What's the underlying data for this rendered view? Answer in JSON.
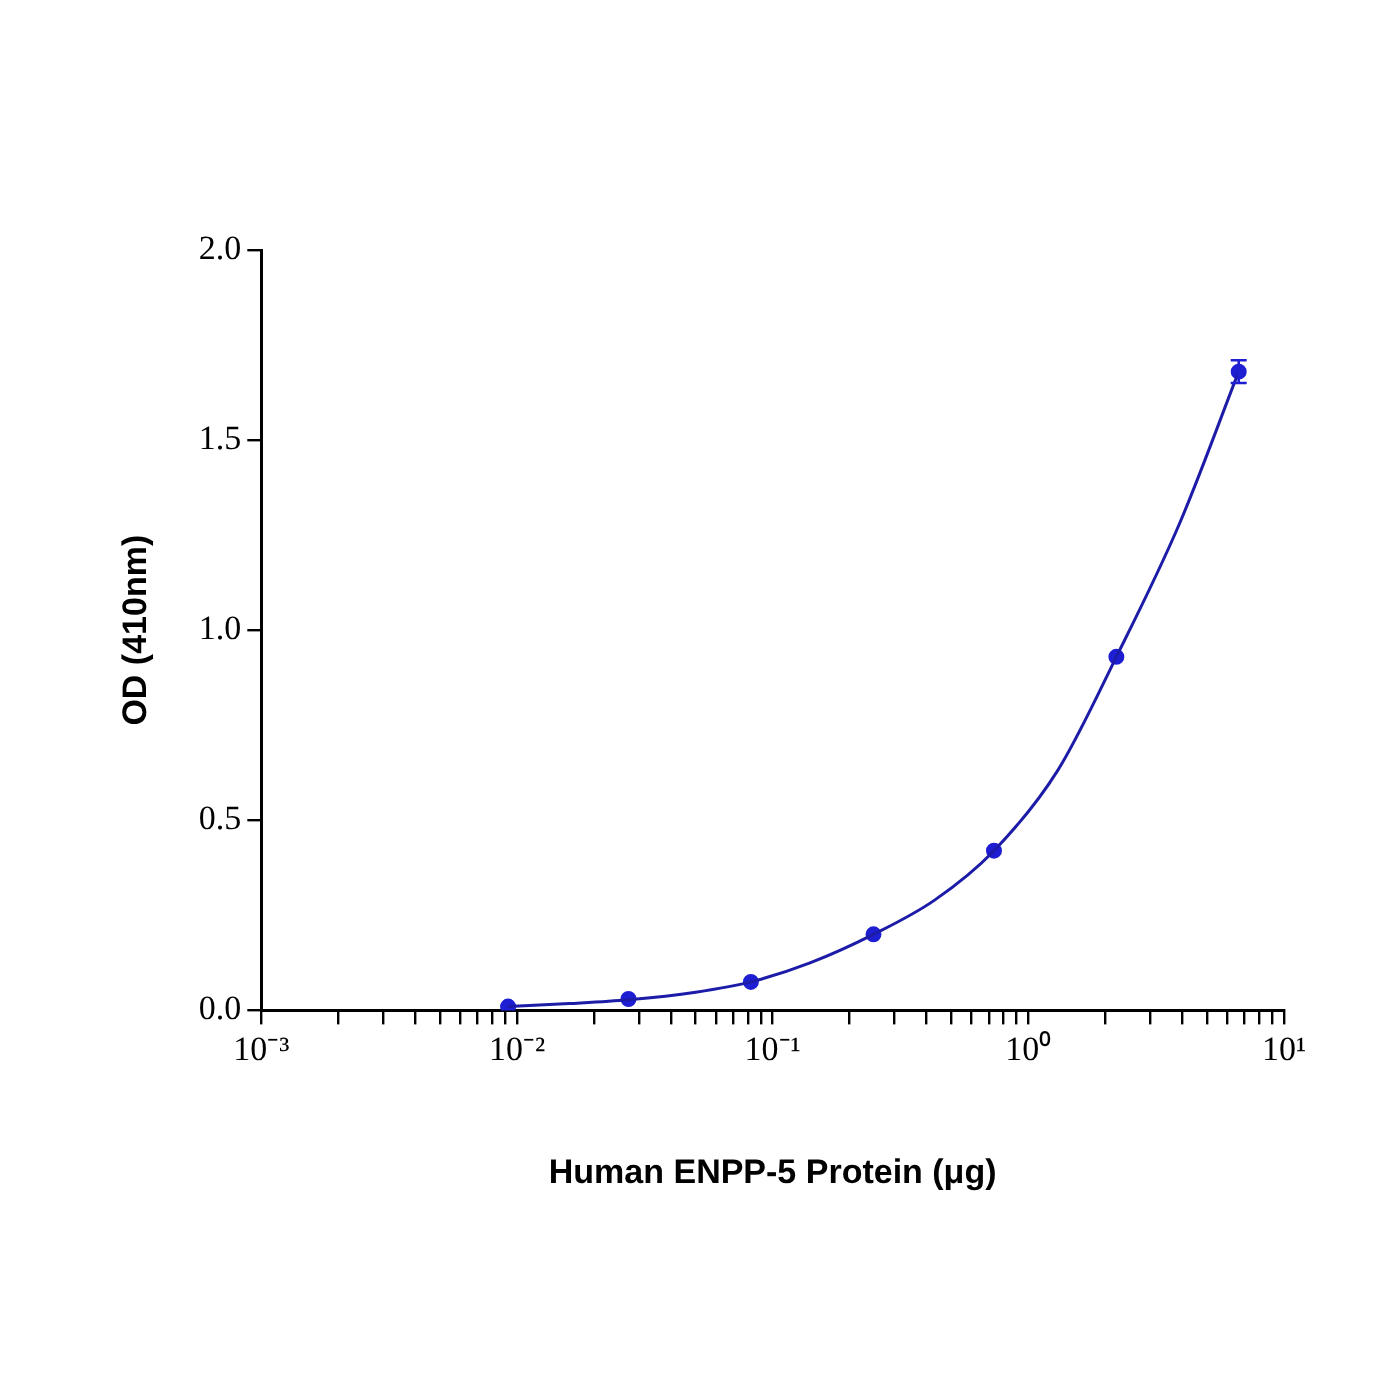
{
  "chart_data": {
    "type": "scatter",
    "xlabel": "Human ENPP-5 Protein (μg)",
    "ylabel": "OD (410nm)",
    "log": "x",
    "grid": false,
    "legend": false,
    "marker": "circle",
    "xlim": [
      0.001,
      10
    ],
    "xticks": [
      {
        "value": 0.001,
        "label": "10⁻³"
      },
      {
        "value": 0.002,
        "label": null
      },
      {
        "value": 0.003,
        "label": null
      },
      {
        "value": 0.004,
        "label": null
      },
      {
        "value": 0.005,
        "label": null
      },
      {
        "value": 0.006,
        "label": null
      },
      {
        "value": 0.007,
        "label": null
      },
      {
        "value": 0.008,
        "label": null
      },
      {
        "value": 0.009,
        "label": null
      },
      {
        "value": 0.01,
        "label": "10⁻²"
      },
      {
        "value": 0.02,
        "label": null
      },
      {
        "value": 0.03,
        "label": null
      },
      {
        "value": 0.04,
        "label": null
      },
      {
        "value": 0.05,
        "label": null
      },
      {
        "value": 0.06,
        "label": null
      },
      {
        "value": 0.07,
        "label": null
      },
      {
        "value": 0.08,
        "label": null
      },
      {
        "value": 0.09,
        "label": null
      },
      {
        "value": 0.1,
        "label": "10⁻¹"
      },
      {
        "value": 0.2,
        "label": null
      },
      {
        "value": 0.3,
        "label": null
      },
      {
        "value": 0.4,
        "label": null
      },
      {
        "value": 0.5,
        "label": null
      },
      {
        "value": 0.6,
        "label": null
      },
      {
        "value": 0.7,
        "label": null
      },
      {
        "value": 0.8,
        "label": null
      },
      {
        "value": 0.9,
        "label": null
      },
      {
        "value": 1,
        "label": "10⁰"
      },
      {
        "value": 2,
        "label": null
      },
      {
        "value": 3,
        "label": null
      },
      {
        "value": 4,
        "label": null
      },
      {
        "value": 5,
        "label": null
      },
      {
        "value": 6,
        "label": null
      },
      {
        "value": 7,
        "label": null
      },
      {
        "value": 8,
        "label": null
      },
      {
        "value": 9,
        "label": null
      },
      {
        "value": 10,
        "label": "10¹"
      }
    ],
    "ylim": [
      0,
      2
    ],
    "yticks": [
      {
        "value": 0,
        "label": "0.0"
      },
      {
        "value": 0.5,
        "label": "0.5"
      },
      {
        "value": 1,
        "label": "1.0"
      },
      {
        "value": 1.5,
        "label": "1.5"
      },
      {
        "value": 2,
        "label": "2.0"
      }
    ],
    "series": [
      {
        "type": "line",
        "marker": "none",
        "color": "#1c1ca8",
        "x": [
          0.00923,
          0.016,
          0.0273,
          0.05,
          0.0822,
          0.14,
          0.248,
          0.43,
          0.734,
          1.3,
          2.21,
          3.9,
          6.65
        ],
        "values": [
          0.01,
          0.018,
          0.028,
          0.048,
          0.075,
          0.125,
          0.2,
          0.29,
          0.42,
          0.63,
          0.93,
          1.28,
          1.68
        ]
      },
      {
        "type": "scatter",
        "color": "#1e1ed2",
        "x": [
          0.00923,
          0.0273,
          0.0822,
          0.248,
          0.734,
          2.21,
          6.65
        ],
        "values": [
          0.01,
          0.03,
          0.075,
          0.2,
          0.42,
          0.93,
          1.68
        ],
        "errors": [
          null,
          null,
          null,
          null,
          null,
          null,
          0.03
        ]
      }
    ]
  }
}
